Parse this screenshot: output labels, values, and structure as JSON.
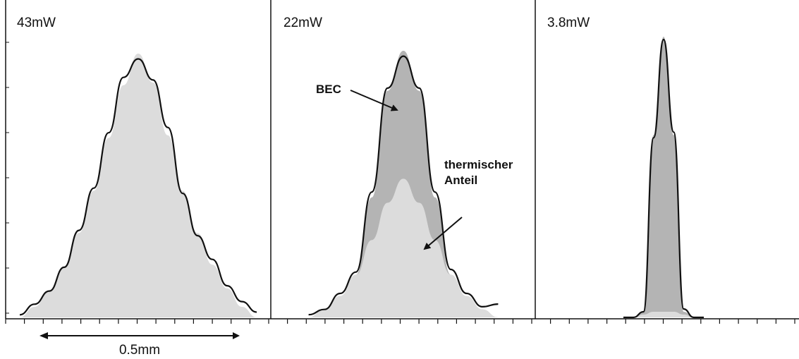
{
  "chart_data": [
    {
      "type": "area",
      "panel_label": "43mW",
      "x": [
        -1.6,
        -1.4,
        -1.2,
        -1.0,
        -0.8,
        -0.6,
        -0.4,
        -0.2,
        0.0,
        0.2,
        0.4,
        0.6,
        0.8,
        1.0,
        1.2,
        1.4,
        1.6
      ],
      "series": [
        {
          "values": [
            0.0,
            0.04,
            0.1,
            0.19,
            0.32,
            0.48,
            0.68,
            0.88,
            1.0,
            0.89,
            0.69,
            0.48,
            0.32,
            0.2,
            0.11,
            0.04,
            0.0
          ]
        },
        {
          "values": [
            0.01,
            0.05,
            0.1,
            0.19,
            0.33,
            0.49,
            0.7,
            0.91,
            0.98,
            0.9,
            0.72,
            0.47,
            0.31,
            0.22,
            0.12,
            0.06,
            0.02
          ]
        }
      ]
    },
    {
      "type": "area",
      "panel_label": "22mW",
      "annotations": [
        "BEC",
        "thermischer",
        "Anteil"
      ],
      "x": [
        -1.2,
        -1.0,
        -0.8,
        -0.6,
        -0.4,
        -0.2,
        0.0,
        0.2,
        0.4,
        0.6,
        0.8,
        1.0,
        1.2
      ],
      "series": [
        {
          "values": [
            0.0,
            0.03,
            0.08,
            0.16,
            0.29,
            0.43,
            0.52,
            0.43,
            0.29,
            0.16,
            0.08,
            0.03,
            0.0
          ]
        },
        {
          "values": [
            0.0,
            0.03,
            0.08,
            0.16,
            0.45,
            0.85,
            1.0,
            0.85,
            0.45,
            0.16,
            0.08,
            0.03,
            0.0
          ]
        },
        {
          "values": [
            0.01,
            0.03,
            0.09,
            0.17,
            0.47,
            0.86,
            0.98,
            0.86,
            0.47,
            0.18,
            0.09,
            0.04,
            0.05
          ]
        }
      ]
    },
    {
      "type": "area",
      "panel_label": "3.8mW",
      "x": [
        -0.6,
        -0.45,
        -0.3,
        -0.15,
        0.0,
        0.15,
        0.3,
        0.45,
        0.6
      ],
      "series": [
        {
          "values": [
            0.0,
            0.0,
            0.01,
            0.02,
            0.02,
            0.02,
            0.01,
            0.0,
            0.0
          ]
        },
        {
          "values": [
            0.0,
            0.0,
            0.02,
            0.65,
            1.0,
            0.65,
            0.02,
            0.0,
            0.0
          ]
        },
        {
          "values": [
            0.0,
            0.0,
            0.02,
            0.64,
            0.99,
            0.66,
            0.03,
            0.0,
            0.0
          ]
        }
      ]
    }
  ],
  "scale_bar": {
    "label": "0.5mm"
  },
  "colors": {
    "thermal_fill": "#dcdcdc",
    "bec_fill": "#b4b4b4",
    "data_line": "#111111",
    "frame": "#111111"
  }
}
